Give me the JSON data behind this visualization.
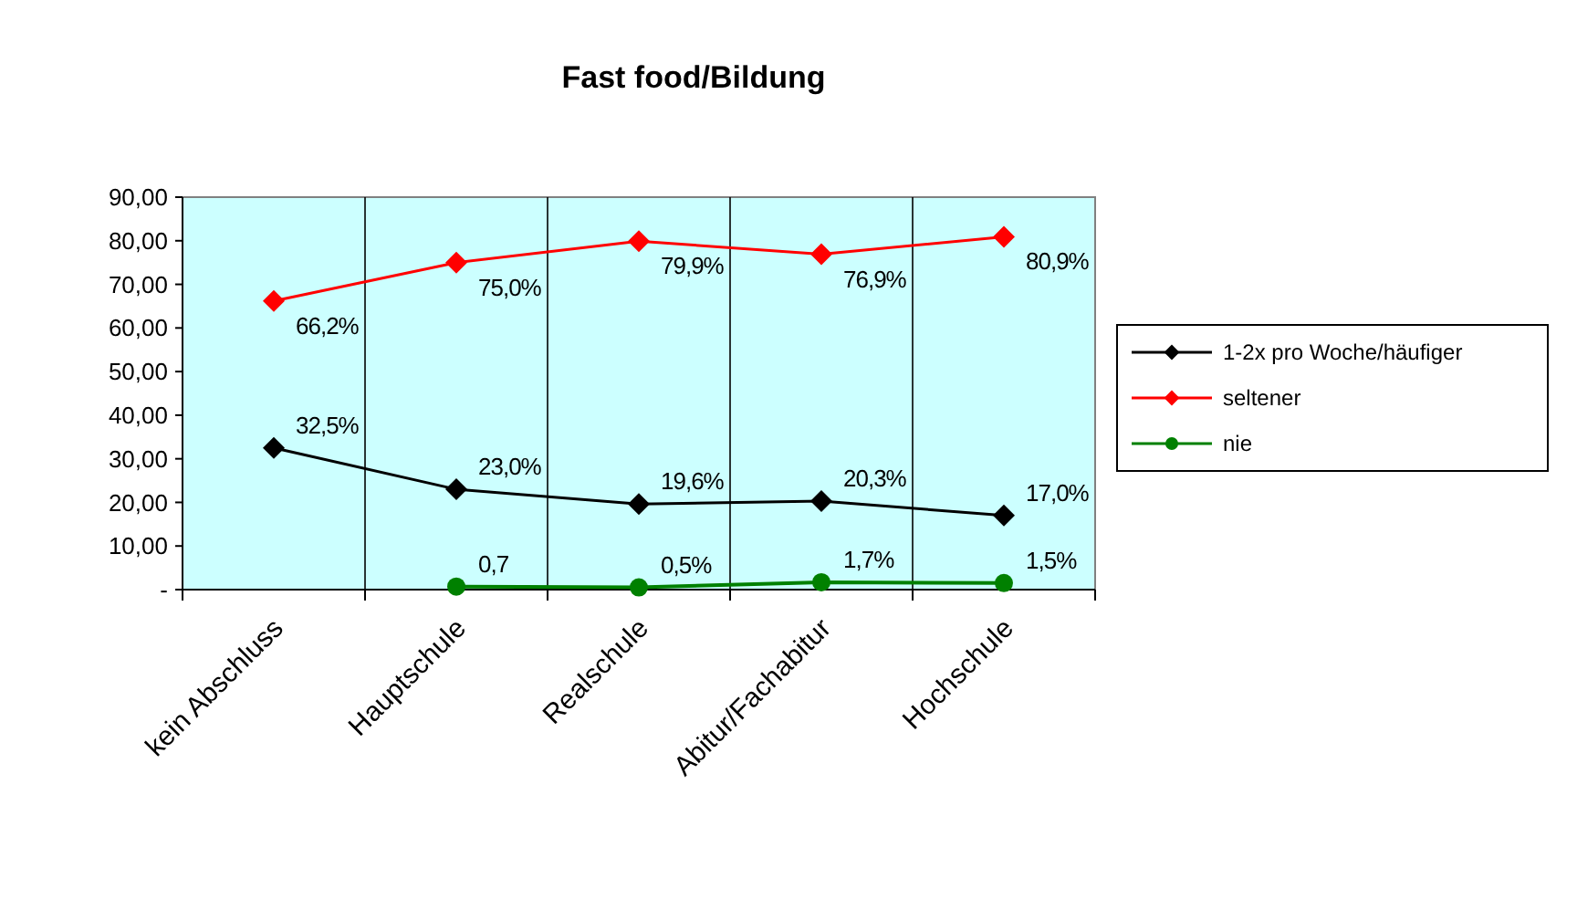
{
  "chart_data": {
    "type": "line",
    "title": "Fast food/Bildung",
    "categories": [
      "kein Abschluss",
      "Hauptschule",
      "Realschule",
      "Abitur/Fachabitur",
      "Hochschule"
    ],
    "series": [
      {
        "name": "1-2x pro Woche/häufiger",
        "color": "#000000",
        "marker": "diamond",
        "values": [
          32.5,
          23.0,
          19.6,
          20.3,
          17.0
        ],
        "value_labels": [
          "32,5%",
          "23,0%",
          "19,6%",
          "20,3%",
          "17,0%"
        ]
      },
      {
        "name": "seltener",
        "color": "#ff0000",
        "marker": "diamond",
        "values": [
          66.2,
          75.0,
          79.9,
          76.9,
          80.9
        ],
        "value_labels": [
          "66,2%",
          "75,0%",
          "79,9%",
          "76,9%",
          "80,9%"
        ]
      },
      {
        "name": "nie",
        "color": "#008000",
        "marker": "circle",
        "values": [
          null,
          0.7,
          0.5,
          1.7,
          1.5
        ],
        "value_labels": [
          null,
          "0,7",
          "0,5%",
          "1,7%",
          "1,5%"
        ]
      }
    ],
    "ylim": [
      0,
      90
    ],
    "yticks": [
      {
        "value": 0,
        "label": "-"
      },
      {
        "value": 10,
        "label": "10,00"
      },
      {
        "value": 20,
        "label": "20,00"
      },
      {
        "value": 30,
        "label": "30,00"
      },
      {
        "value": 40,
        "label": "40,00"
      },
      {
        "value": 50,
        "label": "50,00"
      },
      {
        "value": 60,
        "label": "60,00"
      },
      {
        "value": 70,
        "label": "70,00"
      },
      {
        "value": 80,
        "label": "80,00"
      },
      {
        "value": 90,
        "label": "90,00"
      }
    ],
    "grid": "x",
    "legend": "right",
    "line_style": "solid"
  }
}
